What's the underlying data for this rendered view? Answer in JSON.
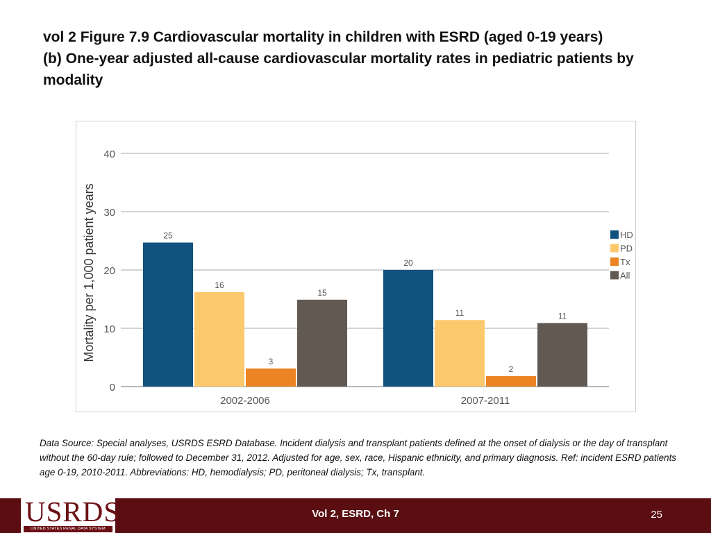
{
  "slide": {
    "title_line1": "vol 2 Figure 7.9 Cardiovascular mortality in children with ESRD (aged 0-19 years)",
    "title_line2": "(b) One-year adjusted all-cause cardiovascular mortality rates in pediatric patients by",
    "title_line3": "modality",
    "footnote": "Data Source: Special analyses, USRDS ESRD Database. Incident dialysis and transplant patients defined at the onset of dialysis or the day of transplant without the 60-day rule; followed to December 31, 2012. Adjusted for age, sex, race, Hispanic ethnicity, and primary diagnosis. Ref: incident ESRD patients age 0-19, 2010-2011. Abbreviations: HD, hemodialysis; PD, peritoneal dialysis; Tx, transplant.",
    "footer_text": "Vol 2, ESRD, Ch 7",
    "page_number": "25",
    "logo_text": "USRDS",
    "logo_subtext": "UNITED STATES RENAL DATA SYSTEM"
  },
  "chart_data": {
    "type": "bar",
    "title": "",
    "xlabel": "",
    "ylabel": "Mortality per 1,000 patient years",
    "ylim": [
      0,
      40
    ],
    "yticks": [
      0,
      10,
      20,
      30,
      40
    ],
    "grid": true,
    "legend_position": "right",
    "categories": [
      "2002-2006",
      "2007-2011"
    ],
    "series": [
      {
        "name": "HD",
        "color": "#11527f",
        "values": [
          24.7,
          20.0
        ],
        "labels": [
          "25",
          "20"
        ]
      },
      {
        "name": "PD",
        "color": "#fdc96d",
        "values": [
          16.2,
          11.4
        ],
        "labels": [
          "16",
          "11"
        ]
      },
      {
        "name": "Tx",
        "color": "#ec8423",
        "values": [
          3.1,
          1.8
        ],
        "labels": [
          "3",
          "2"
        ]
      },
      {
        "name": "All",
        "color": "#615952",
        "values": [
          14.9,
          10.9
        ],
        "labels": [
          "15",
          "11"
        ]
      }
    ]
  }
}
